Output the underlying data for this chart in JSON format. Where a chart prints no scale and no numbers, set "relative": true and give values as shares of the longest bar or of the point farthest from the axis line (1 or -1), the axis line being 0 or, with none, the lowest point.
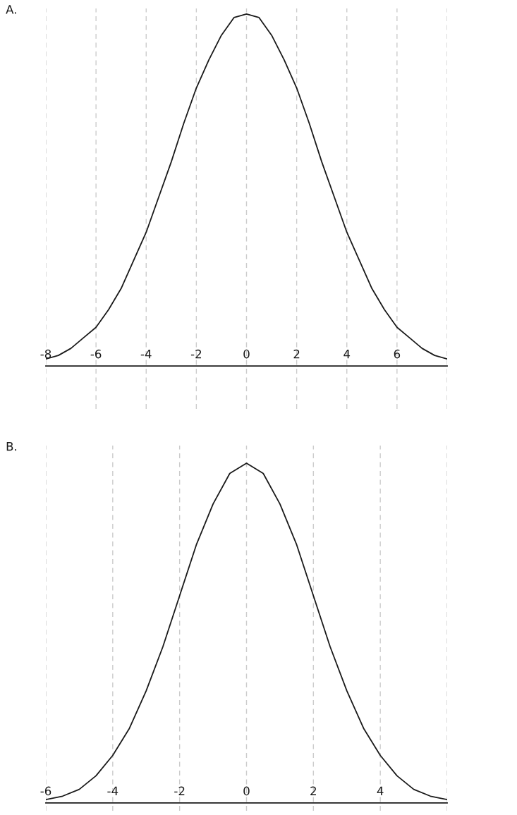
{
  "chart_data": [
    {
      "type": "line",
      "title": "A.",
      "relative": true,
      "grid": "x",
      "color": "#1a1a1a",
      "x": [
        -8,
        -7.5,
        -7,
        -6.5,
        -6,
        -5.5,
        -5,
        -4.5,
        -4,
        -3.5,
        -3,
        -2.5,
        -2,
        -1.5,
        -1,
        -0.5,
        0,
        0.5,
        1,
        1.5,
        2,
        2.5,
        3,
        3.5,
        4,
        4.5,
        5,
        5.5,
        6,
        6.5,
        7,
        7.5,
        8
      ],
      "values": [
        0.02,
        0.03,
        0.05,
        0.08,
        0.11,
        0.16,
        0.22,
        0.3,
        0.38,
        0.48,
        0.58,
        0.69,
        0.79,
        0.87,
        0.94,
        0.99,
        1,
        0.99,
        0.94,
        0.87,
        0.79,
        0.69,
        0.58,
        0.48,
        0.38,
        0.3,
        0.22,
        0.16,
        0.11,
        0.08,
        0.05,
        0.03,
        0.02
      ],
      "xlim": [
        -8,
        8
      ],
      "xticks": [
        -8,
        -6,
        -4,
        -2,
        0,
        2,
        4,
        6,
        {
          "value": 8,
          "label": null
        }
      ]
    },
    {
      "type": "line",
      "title": "B.",
      "relative": true,
      "grid": "x",
      "color": "#1a1a1a",
      "x": [
        -6,
        -5.5,
        -5,
        -4.5,
        -4,
        -3.5,
        -3,
        -2.5,
        -2,
        -1.5,
        -1,
        -0.5,
        0,
        0.5,
        1,
        1.5,
        2,
        2.5,
        3,
        3.5,
        4,
        4.5,
        5,
        5.5,
        6
      ],
      "values": [
        0.01,
        0.02,
        0.04,
        0.08,
        0.14,
        0.22,
        0.33,
        0.46,
        0.61,
        0.76,
        0.88,
        0.97,
        1,
        0.97,
        0.88,
        0.76,
        0.61,
        0.46,
        0.33,
        0.22,
        0.14,
        0.08,
        0.04,
        0.02,
        0.01
      ],
      "xlim": [
        -6,
        6
      ],
      "xticks": [
        -6,
        -4,
        -2,
        0,
        2,
        4,
        {
          "value": 6,
          "label": null
        }
      ]
    }
  ]
}
